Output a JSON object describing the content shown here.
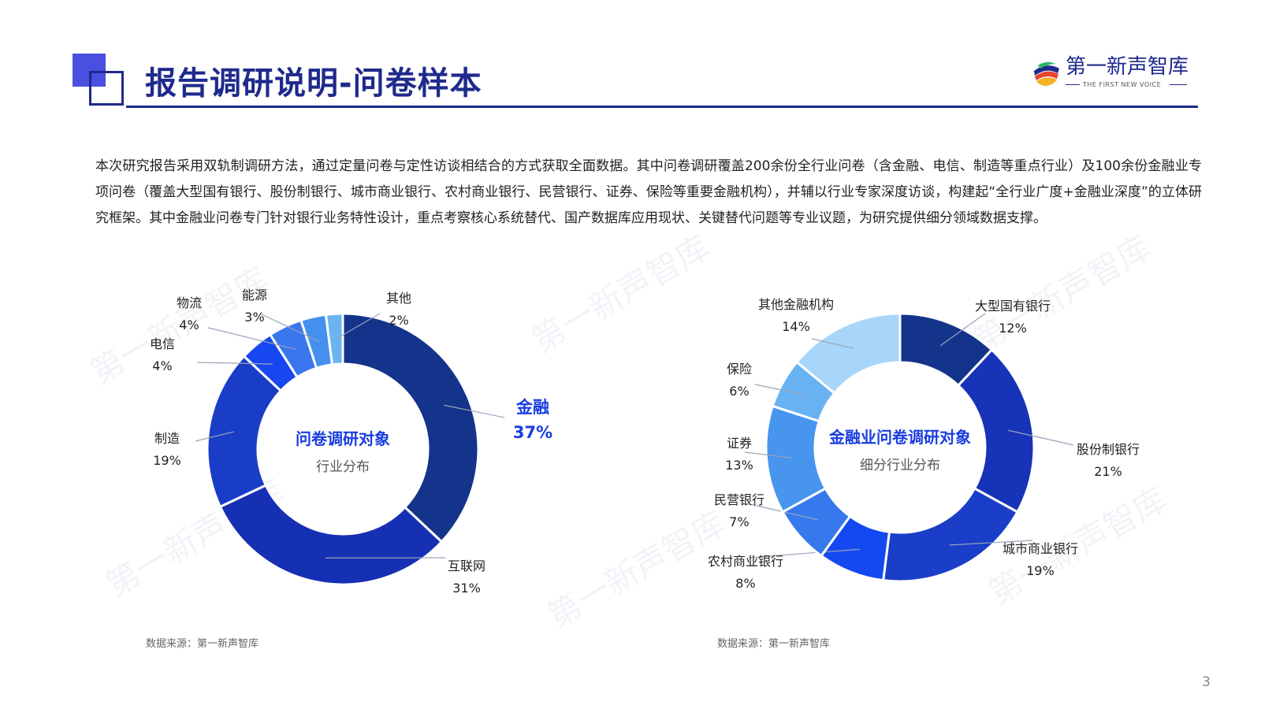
{
  "header": {
    "title": "报告调研说明-问卷样本",
    "logo_cn": "第一新声智库",
    "logo_en": "THE FIRST NEW VOICE"
  },
  "intro_text": "本次研究报告采用双轨制调研方法，通过定量问卷与定性访谈相结合的方式获取全面数据。其中问卷调研覆盖200余份全行业问卷（含金融、电信、制造等重点行业）及100余份金融业专项问卷（覆盖大型国有银行、股份制银行、城市商业银行、农村商业银行、民营银行、证券、保险等重要金融机构），并辅以行业专家深度访谈，构建起“全行业广度+金融业深度”的立体研究框架。其中金融业问卷专门针对银行业务特性设计，重点考察核心系统替代、国产数据库应用现状、关键替代问题等专业议题，为研究提供细分领域数据支撑。",
  "watermark": "第一新声智库",
  "page_number": "3",
  "colors": {
    "brand_dark": "#1e2a8c",
    "highlight_text": "#1a3de0"
  },
  "chart_data": [
    {
      "type": "pie",
      "center_title": "问卷调研对象",
      "center_subtitle": "行业分布",
      "source": "数据来源：第一新声智库",
      "slices": [
        {
          "label": "金融",
          "value": 37,
          "pct": "37%",
          "color": "#14338a",
          "highlight": true
        },
        {
          "label": "互联网",
          "value": 31,
          "pct": "31%",
          "color": "#1630b4"
        },
        {
          "label": "制造",
          "value": 19,
          "pct": "19%",
          "color": "#1a3dc8"
        },
        {
          "label": "电信",
          "value": 4,
          "pct": "4%",
          "color": "#1747f0"
        },
        {
          "label": "物流",
          "value": 4,
          "pct": "4%",
          "color": "#3a76ee"
        },
        {
          "label": "能源",
          "value": 3,
          "pct": "3%",
          "color": "#4590ee"
        },
        {
          "label": "其他",
          "value": 2,
          "pct": "2%",
          "color": "#6bb4f2"
        }
      ]
    },
    {
      "type": "pie",
      "center_title": "金融业问卷调研对象",
      "center_subtitle": "细分行业分布",
      "source": "数据来源：第一新声智库",
      "slices": [
        {
          "label": "大型国有银行",
          "value": 12,
          "pct": "12%",
          "color": "#14338a"
        },
        {
          "label": "股份制银行",
          "value": 21,
          "pct": "21%",
          "color": "#1733b8"
        },
        {
          "label": "城市商业银行",
          "value": 19,
          "pct": "19%",
          "color": "#1a3ec8"
        },
        {
          "label": "农村商业银行",
          "value": 8,
          "pct": "8%",
          "color": "#1449f2"
        },
        {
          "label": "民营银行",
          "value": 7,
          "pct": "7%",
          "color": "#3579ec"
        },
        {
          "label": "证券",
          "value": 13,
          "pct": "13%",
          "color": "#4895ee"
        },
        {
          "label": "保险",
          "value": 6,
          "pct": "6%",
          "color": "#68b2f2"
        },
        {
          "label": "其他金融机构",
          "value": 14,
          "pct": "14%",
          "color": "#a8d6fb"
        }
      ]
    }
  ]
}
